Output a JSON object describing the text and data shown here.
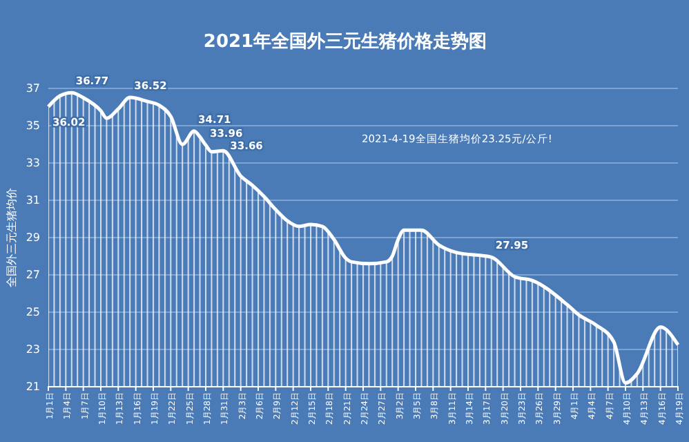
{
  "chart_data": {
    "type": "area",
    "title": "2021年全国外三元生猪价格走势图",
    "ylabel": "全国外三元生猪均价",
    "annotations": [
      "2021-4-19全国生猪均价23.25元/公斤!"
    ],
    "x": [
      "2021-01-01",
      "2021-01-03",
      "2021-01-05",
      "2021-01-07",
      "2021-01-10",
      "2021-01-11",
      "2021-01-13",
      "2021-01-15",
      "2021-01-18",
      "2021-01-20",
      "2021-01-22",
      "2021-01-24",
      "2021-01-26",
      "2021-01-27",
      "2021-01-28",
      "2021-01-29",
      "2021-01-31",
      "2021-02-03",
      "2021-02-05",
      "2021-02-07",
      "2021-02-09",
      "2021-02-11",
      "2021-02-13",
      "2021-02-15",
      "2021-02-17",
      "2021-02-19",
      "2021-02-21",
      "2021-02-22",
      "2021-02-25",
      "2021-02-28",
      "2021-03-01",
      "2021-03-02",
      "2021-03-03",
      "2021-03-06",
      "2021-03-09",
      "2021-03-12",
      "2021-03-18",
      "2021-03-22",
      "2021-03-25",
      "2021-03-31",
      "2021-04-02",
      "2021-04-05",
      "2021-04-08",
      "2021-04-10",
      "2021-04-12",
      "2021-04-16",
      "2021-04-19"
    ],
    "series": [
      {
        "color": "#ffffff",
        "values": [
          36.02,
          36.6,
          36.77,
          36.5,
          35.8,
          35.4,
          35.9,
          36.52,
          36.3,
          36.1,
          35.5,
          34.0,
          34.71,
          34.4,
          33.96,
          33.6,
          33.66,
          32.3,
          31.8,
          31.2,
          30.5,
          29.9,
          29.6,
          29.7,
          29.6,
          28.9,
          27.9,
          27.7,
          27.6,
          27.7,
          28.0,
          28.9,
          29.4,
          29.4,
          28.6,
          28.2,
          27.95,
          26.9,
          26.7,
          25.4,
          24.85,
          24.3,
          23.4,
          21.2,
          21.7,
          24.2,
          23.25
        ],
        "value_labels": [
          "36.02",
          null,
          "36.77",
          null,
          null,
          null,
          null,
          "36.52",
          null,
          null,
          null,
          null,
          "34.71",
          null,
          "33.96",
          null,
          "33.66",
          null,
          null,
          null,
          null,
          null,
          null,
          null,
          null,
          null,
          null,
          null,
          null,
          null,
          null,
          null,
          null,
          null,
          null,
          null,
          "27.95",
          null,
          null,
          null,
          null,
          null,
          null,
          null,
          null,
          null,
          null
        ]
      }
    ],
    "xlim": [
      "2021-01-01",
      "2021-04-19"
    ],
    "xticks": [
      {
        "value": "2021-01-01",
        "label": "1月1日"
      },
      {
        "value": "2021-01-04",
        "label": "1月4日"
      },
      {
        "value": "2021-01-07",
        "label": "1月7日"
      },
      {
        "value": "2021-01-10",
        "label": "1月10日"
      },
      {
        "value": "2021-01-13",
        "label": "1月13日"
      },
      {
        "value": "2021-01-16",
        "label": "1月16日"
      },
      {
        "value": "2021-01-19",
        "label": "1月19日"
      },
      {
        "value": "2021-01-22",
        "label": "1月22日"
      },
      {
        "value": "2021-01-25",
        "label": "1月25日"
      },
      {
        "value": "2021-01-28",
        "label": "1月28日"
      },
      {
        "value": "2021-01-31",
        "label": "1月31日"
      },
      {
        "value": "2021-02-03",
        "label": "2月3日"
      },
      {
        "value": "2021-02-06",
        "label": "2月6日"
      },
      {
        "value": "2021-02-09",
        "label": "2月9日"
      },
      {
        "value": "2021-02-12",
        "label": "2月12日"
      },
      {
        "value": "2021-02-15",
        "label": "2月15日"
      },
      {
        "value": "2021-02-18",
        "label": "2月18日"
      },
      {
        "value": "2021-02-21",
        "label": "2月21日"
      },
      {
        "value": "2021-02-24",
        "label": "2月24日"
      },
      {
        "value": "2021-02-27",
        "label": "2月27日"
      },
      {
        "value": "2021-03-02",
        "label": "3月2日"
      },
      {
        "value": "2021-03-05",
        "label": "3月5日"
      },
      {
        "value": "2021-03-08",
        "label": "3月8日"
      },
      {
        "value": "2021-03-11",
        "label": "3月11日"
      },
      {
        "value": "2021-03-14",
        "label": "3月14日"
      },
      {
        "value": "2021-03-17",
        "label": "3月17日"
      },
      {
        "value": "2021-03-20",
        "label": "3月20日"
      },
      {
        "value": "2021-03-23",
        "label": "3月23日"
      },
      {
        "value": "2021-03-26",
        "label": "3月26日"
      },
      {
        "value": "2021-03-29",
        "label": "3月29日"
      },
      {
        "value": "2021-04-01",
        "label": "4月1日"
      },
      {
        "value": "2021-04-04",
        "label": "4月4日"
      },
      {
        "value": "2021-04-07",
        "label": "4月7日"
      },
      {
        "value": "2021-04-10",
        "label": "4月10日"
      },
      {
        "value": "2021-04-13",
        "label": "4月13日"
      },
      {
        "value": "2021-04-16",
        "label": "4月16日"
      },
      {
        "value": "2021-04-19",
        "label": "4月19日"
      }
    ],
    "ylim": [
      21,
      37
    ],
    "yticks": [
      21,
      23,
      25,
      27,
      29,
      31,
      33,
      35,
      37
    ],
    "grid": "y"
  }
}
